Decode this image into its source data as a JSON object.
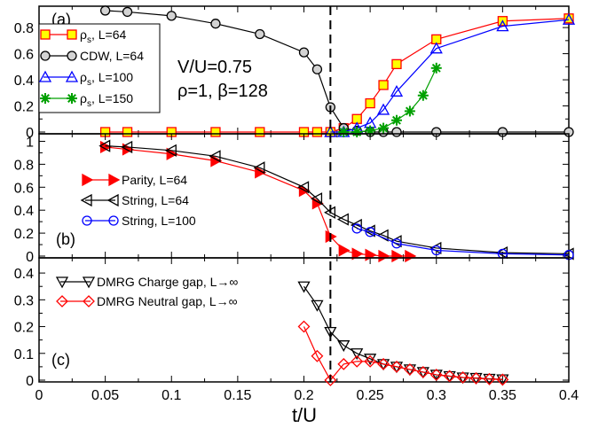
{
  "figure": {
    "xlabel": "t/U",
    "xlim": [
      0,
      0.4
    ],
    "xticks": [
      0,
      0.05,
      0.1,
      0.15,
      0.2,
      0.25,
      0.3,
      0.35,
      0.4
    ],
    "dashed_line_x": 0.22,
    "colors": {
      "red": "#ff0000",
      "black": "#000000",
      "blue": "#0000ff",
      "green": "#00a000",
      "yellow": "#ffff00"
    }
  },
  "chart_data": [
    {
      "type": "line",
      "panel_label": "(a)",
      "annotation": {
        "line1": "V/U=0.75",
        "line2": "ρ=1, β=128"
      },
      "ylim": [
        0,
        0.95
      ],
      "yticks": [
        0,
        0.2,
        0.4,
        0.6,
        0.8
      ],
      "legend_position": "top-left",
      "series": [
        {
          "name": "ρs, L=64",
          "name_main": "ρ",
          "name_sub": "s",
          "name_rest": ", L=64",
          "color": "#ff0000",
          "marker": "square",
          "marker_fill": "#ffff00",
          "x": [
            0.05,
            0.0667,
            0.1,
            0.1333,
            0.1667,
            0.2,
            0.21,
            0.22,
            0.23,
            0.24,
            0.25,
            0.26,
            0.27,
            0.3,
            0.35,
            0.4
          ],
          "y": [
            0.0,
            0.0,
            0.0,
            0.0,
            0.0,
            0.0,
            0.0,
            0.0,
            0.03,
            0.1,
            0.22,
            0.36,
            0.52,
            0.71,
            0.85,
            0.87
          ]
        },
        {
          "name": "CDW, L=64",
          "color": "#000000",
          "marker": "circle",
          "marker_fill": "#d3d3d3",
          "x": [
            0.05,
            0.0667,
            0.1,
            0.1333,
            0.1667,
            0.2,
            0.21,
            0.22,
            0.23,
            0.24,
            0.25,
            0.26,
            0.27,
            0.3,
            0.35,
            0.4
          ],
          "y": [
            0.93,
            0.92,
            0.89,
            0.83,
            0.75,
            0.61,
            0.48,
            0.19,
            0.03,
            0.01,
            0.0,
            0.0,
            0.0,
            0.0,
            0.0,
            0.0
          ]
        },
        {
          "name": "ρs, L=100",
          "name_main": "ρ",
          "name_sub": "s",
          "name_rest": ", L=100",
          "color": "#0000ff",
          "marker": "triangle",
          "marker_fill": "none",
          "x": [
            0.22,
            0.23,
            0.24,
            0.25,
            0.26,
            0.27,
            0.3,
            0.35,
            0.4
          ],
          "y": [
            0.0,
            0.0,
            0.03,
            0.07,
            0.17,
            0.31,
            0.64,
            0.81,
            0.86
          ]
        },
        {
          "name": "ρs, L=150",
          "name_main": "ρ",
          "name_sub": "s",
          "name_rest": ", L=150",
          "color": "#00a000",
          "marker": "star",
          "marker_fill": "none",
          "x": [
            0.23,
            0.24,
            0.25,
            0.26,
            0.27,
            0.28,
            0.29,
            0.3
          ],
          "y": [
            0.0,
            0.0,
            0.01,
            0.03,
            0.09,
            0.16,
            0.28,
            0.49
          ]
        }
      ]
    },
    {
      "type": "line",
      "panel_label": "(b)",
      "ylim": [
        0,
        1.05
      ],
      "yticks": [
        0,
        0.2,
        0.4,
        0.6,
        0.8,
        1
      ],
      "legend_position": "center-left",
      "series": [
        {
          "name": "Parity, L=64",
          "color": "#ff0000",
          "marker": "triangle-right",
          "marker_fill": "#ff0000",
          "x": [
            0.05,
            0.0667,
            0.1,
            0.1333,
            0.1667,
            0.2,
            0.21,
            0.22,
            0.23,
            0.24,
            0.25,
            0.26,
            0.27,
            0.28
          ],
          "y": [
            0.95,
            0.93,
            0.89,
            0.83,
            0.73,
            0.57,
            0.46,
            0.17,
            0.05,
            0.02,
            0.01,
            0.0,
            0.0,
            0.0
          ]
        },
        {
          "name": "String, L=64",
          "color": "#000000",
          "marker": "triangle-left",
          "marker_fill": "none",
          "x": [
            0.05,
            0.0667,
            0.1,
            0.1333,
            0.1667,
            0.2,
            0.21,
            0.22,
            0.23,
            0.24,
            0.25,
            0.26,
            0.27,
            0.3,
            0.35,
            0.4
          ],
          "y": [
            0.96,
            0.95,
            0.92,
            0.87,
            0.77,
            0.6,
            0.5,
            0.38,
            0.32,
            0.27,
            0.22,
            0.18,
            0.13,
            0.07,
            0.03,
            0.02
          ]
        },
        {
          "name": "String, L=100",
          "color": "#0000ff",
          "marker": "circle",
          "marker_fill": "none",
          "x": [
            0.24,
            0.25,
            0.27,
            0.3,
            0.35,
            0.4
          ],
          "y": [
            0.24,
            0.21,
            0.11,
            0.05,
            0.02,
            0.01
          ]
        }
      ]
    },
    {
      "type": "line",
      "panel_label": "(c)",
      "ylim": [
        0,
        0.45
      ],
      "yticks": [
        0,
        0.1,
        0.2,
        0.3,
        0.4
      ],
      "legend_position": "top-left",
      "series": [
        {
          "name": "DMRG Charge gap, L→∞",
          "color": "#000000",
          "marker": "triangle-down",
          "marker_fill": "none",
          "x": [
            0.2,
            0.21,
            0.22,
            0.23,
            0.24,
            0.25,
            0.26,
            0.27,
            0.28,
            0.29,
            0.3,
            0.31,
            0.32,
            0.33,
            0.34,
            0.35
          ],
          "y": [
            0.35,
            0.28,
            0.18,
            0.13,
            0.1,
            0.08,
            0.06,
            0.05,
            0.04,
            0.03,
            0.02,
            0.015,
            0.01,
            0.008,
            0.005,
            0.003
          ]
        },
        {
          "name": "DMRG Neutral gap, L→∞",
          "color": "#ff0000",
          "marker": "diamond",
          "marker_fill": "none",
          "x": [
            0.2,
            0.21,
            0.22,
            0.23,
            0.24,
            0.25,
            0.26,
            0.27,
            0.28,
            0.29,
            0.3,
            0.31,
            0.32,
            0.33,
            0.34,
            0.35
          ],
          "y": [
            0.2,
            0.09,
            0.0,
            0.06,
            0.07,
            0.07,
            0.06,
            0.05,
            0.04,
            0.03,
            0.02,
            0.015,
            0.01,
            0.007,
            0.004,
            0.002
          ]
        }
      ]
    }
  ]
}
